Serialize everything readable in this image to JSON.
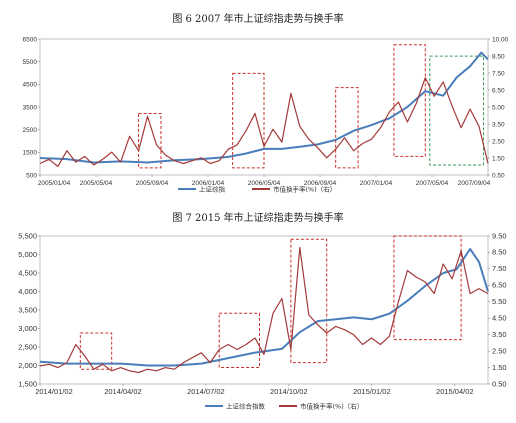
{
  "chart_data": [
    {
      "type": "line",
      "title": "图 6   2007 年市上证综指走势与换手率",
      "x_ticks": [
        "2005/01/04",
        "2005/05/04",
        "2005/09/04",
        "2006/01/04",
        "2006/05/04",
        "2006/09/04",
        "2007/01/04",
        "2007/05/04",
        "2007/09/04"
      ],
      "y_left_ticks": [
        "6500",
        "5500",
        "4500",
        "3500",
        "2500",
        "1500",
        "500"
      ],
      "y_left_range": [
        500,
        6500
      ],
      "y_right_ticks": [
        "10.00",
        "8.50",
        "7.50",
        "6.50",
        "5.00",
        "3.50",
        "2.50",
        "1.50",
        "0.50"
      ],
      "y_right_range": [
        0.5,
        10
      ],
      "legend_position": "bottom-center",
      "series": [
        {
          "name": "上证综指",
          "axis": "left",
          "color": "#4a7ebb",
          "x": [
            0,
            0.06,
            0.12,
            0.18,
            0.24,
            0.3,
            0.36,
            0.42,
            0.46,
            0.5,
            0.54,
            0.58,
            0.62,
            0.66,
            0.7,
            0.74,
            0.78,
            0.82,
            0.86,
            0.9,
            0.93,
            0.96,
            0.985,
            1.0
          ],
          "values": [
            1250,
            1200,
            1050,
            1100,
            1050,
            1150,
            1200,
            1300,
            1450,
            1650,
            1650,
            1750,
            1850,
            2050,
            2450,
            2700,
            3000,
            3500,
            4200,
            4000,
            4800,
            5300,
            5900,
            5600
          ]
        },
        {
          "name": "市值换手率(%)（右）",
          "axis": "right",
          "color": "#a33a3a",
          "x": [
            0,
            0.02,
            0.04,
            0.06,
            0.08,
            0.1,
            0.12,
            0.14,
            0.16,
            0.18,
            0.2,
            0.22,
            0.24,
            0.26,
            0.28,
            0.3,
            0.32,
            0.34,
            0.36,
            0.38,
            0.4,
            0.42,
            0.44,
            0.46,
            0.48,
            0.5,
            0.52,
            0.54,
            0.56,
            0.58,
            0.6,
            0.62,
            0.64,
            0.66,
            0.68,
            0.7,
            0.72,
            0.74,
            0.76,
            0.78,
            0.8,
            0.82,
            0.84,
            0.86,
            0.88,
            0.9,
            0.92,
            0.94,
            0.96,
            0.98,
            1.0
          ],
          "values": [
            1.3,
            1.6,
            1.1,
            2.2,
            1.4,
            1.8,
            1.2,
            1.6,
            2.1,
            1.4,
            3.2,
            2.2,
            4.6,
            2.6,
            1.9,
            1.5,
            1.3,
            1.5,
            1.7,
            1.3,
            1.5,
            2.3,
            2.6,
            3.6,
            4.8,
            2.5,
            3.7,
            2.8,
            6.2,
            3.9,
            3.0,
            2.4,
            1.7,
            2.3,
            3.1,
            2.2,
            2.7,
            3.0,
            3.8,
            4.9,
            5.6,
            4.2,
            5.5,
            7.3,
            6.0,
            7.0,
            5.3,
            3.8,
            5.1,
            3.9,
            1.3
          ]
        }
      ],
      "annotations": [
        {
          "type": "red-dashed-box",
          "x": [
            0.22,
            0.27
          ],
          "y": [
            1.0,
            4.8
          ]
        },
        {
          "type": "red-dashed-box",
          "x": [
            0.43,
            0.5
          ],
          "y": [
            1.0,
            7.6
          ]
        },
        {
          "type": "red-dashed-box",
          "x": [
            0.66,
            0.71
          ],
          "y": [
            1.0,
            6.6
          ]
        },
        {
          "type": "red-dashed-box",
          "x": [
            0.79,
            0.86
          ],
          "y": [
            1.8,
            9.6
          ]
        },
        {
          "type": "green-dashed-box",
          "x": [
            0.87,
            0.99
          ],
          "y": [
            1.2,
            8.8
          ]
        }
      ]
    },
    {
      "type": "line",
      "title": "图 7   2015 年市上证综指走势与换手率",
      "x_ticks": [
        "2014/01/02",
        "2014/04/02",
        "2014/07/02",
        "2014/10/02",
        "2015/01/02",
        "2015/04/02"
      ],
      "y_left_ticks": [
        "5,500",
        "5,000",
        "4,500",
        "4,000",
        "3,500",
        "3,000",
        "2,500",
        "2,000",
        "1,500"
      ],
      "y_left_range": [
        1500,
        5500
      ],
      "y_right_ticks": [
        "9.50",
        "8.50",
        "7.50",
        "6.50",
        "5.50",
        "4.50",
        "3.50",
        "2.50",
        "1.50",
        "0.50"
      ],
      "y_right_range": [
        0.5,
        9.5
      ],
      "legend_position": "bottom-center",
      "series": [
        {
          "name": "上证综合指数",
          "axis": "left",
          "color": "#4a7ebb",
          "x": [
            0,
            0.06,
            0.12,
            0.18,
            0.24,
            0.3,
            0.36,
            0.42,
            0.48,
            0.54,
            0.58,
            0.62,
            0.66,
            0.7,
            0.74,
            0.78,
            0.82,
            0.86,
            0.9,
            0.93,
            0.96,
            0.98,
            1.0
          ],
          "values": [
            2100,
            2050,
            2050,
            2050,
            2000,
            2000,
            2050,
            2200,
            2350,
            2450,
            2900,
            3200,
            3250,
            3300,
            3250,
            3400,
            3750,
            4150,
            4500,
            4600,
            5150,
            4800,
            4000
          ]
        },
        {
          "name": "市值换手率(%)（右）",
          "axis": "right",
          "color": "#a33a3a",
          "x": [
            0,
            0.02,
            0.04,
            0.06,
            0.08,
            0.1,
            0.12,
            0.14,
            0.16,
            0.18,
            0.2,
            0.22,
            0.24,
            0.26,
            0.28,
            0.3,
            0.32,
            0.34,
            0.36,
            0.38,
            0.4,
            0.42,
            0.44,
            0.46,
            0.48,
            0.5,
            0.52,
            0.54,
            0.56,
            0.58,
            0.6,
            0.62,
            0.64,
            0.66,
            0.68,
            0.7,
            0.72,
            0.74,
            0.76,
            0.78,
            0.8,
            0.82,
            0.84,
            0.86,
            0.88,
            0.9,
            0.92,
            0.94,
            0.96,
            0.98,
            1.0
          ],
          "values": [
            1.6,
            1.7,
            1.5,
            1.8,
            2.9,
            2.2,
            1.4,
            1.7,
            1.3,
            1.5,
            1.3,
            1.2,
            1.4,
            1.3,
            1.5,
            1.4,
            1.8,
            2.1,
            2.4,
            1.8,
            2.6,
            2.9,
            2.6,
            2.9,
            3.3,
            2.3,
            4.8,
            5.7,
            2.6,
            8.8,
            4.7,
            4.1,
            3.6,
            4.0,
            3.8,
            3.5,
            2.9,
            3.3,
            2.9,
            3.4,
            5.5,
            7.4,
            7.0,
            6.7,
            6.0,
            7.8,
            6.9,
            8.6,
            6.0,
            6.3,
            6.0
          ]
        }
      ],
      "annotations": [
        {
          "type": "red-dashed-box",
          "x": [
            0.09,
            0.16
          ],
          "y": [
            1.4,
            3.6
          ]
        },
        {
          "type": "red-dashed-box",
          "x": [
            0.4,
            0.49
          ],
          "y": [
            1.5,
            4.8
          ]
        },
        {
          "type": "red-dashed-box",
          "x": [
            0.56,
            0.64
          ],
          "y": [
            1.8,
            9.3
          ]
        },
        {
          "type": "red-dashed-box",
          "x": [
            0.79,
            0.94
          ],
          "y": [
            3.2,
            9.5
          ]
        }
      ]
    }
  ]
}
